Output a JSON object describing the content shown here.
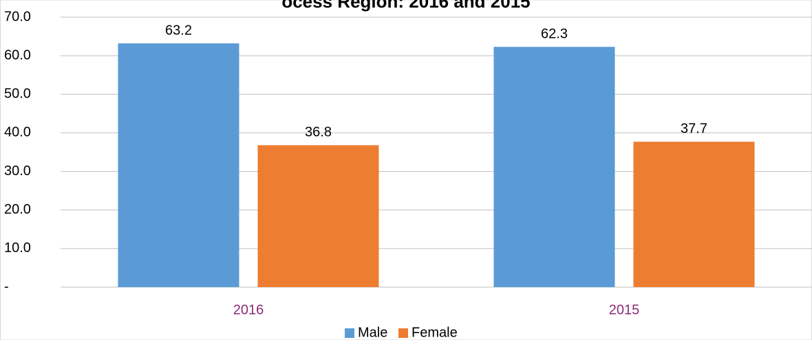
{
  "chart_data": {
    "type": "bar",
    "title": "ocess Region: 2016 and 2015",
    "categories": [
      "2016",
      "2015"
    ],
    "series": [
      {
        "name": "Male",
        "color": "#5b9bd5",
        "values": [
          63.2,
          62.3
        ]
      },
      {
        "name": "Female",
        "color": "#ed7d31",
        "values": [
          36.8,
          37.7
        ]
      }
    ],
    "ylim": [
      0,
      70
    ],
    "yticks": [
      {
        "value": 0,
        "label": "-"
      },
      {
        "value": 10,
        "label": "10.0"
      },
      {
        "value": 20,
        "label": "20.0"
      },
      {
        "value": 30,
        "label": "30.0"
      },
      {
        "value": 40,
        "label": "40.0"
      },
      {
        "value": 50,
        "label": "50.0"
      },
      {
        "value": 60,
        "label": "60.0"
      },
      {
        "value": 70,
        "label": "70.0"
      }
    ],
    "grid": true,
    "legend": "bottom"
  }
}
